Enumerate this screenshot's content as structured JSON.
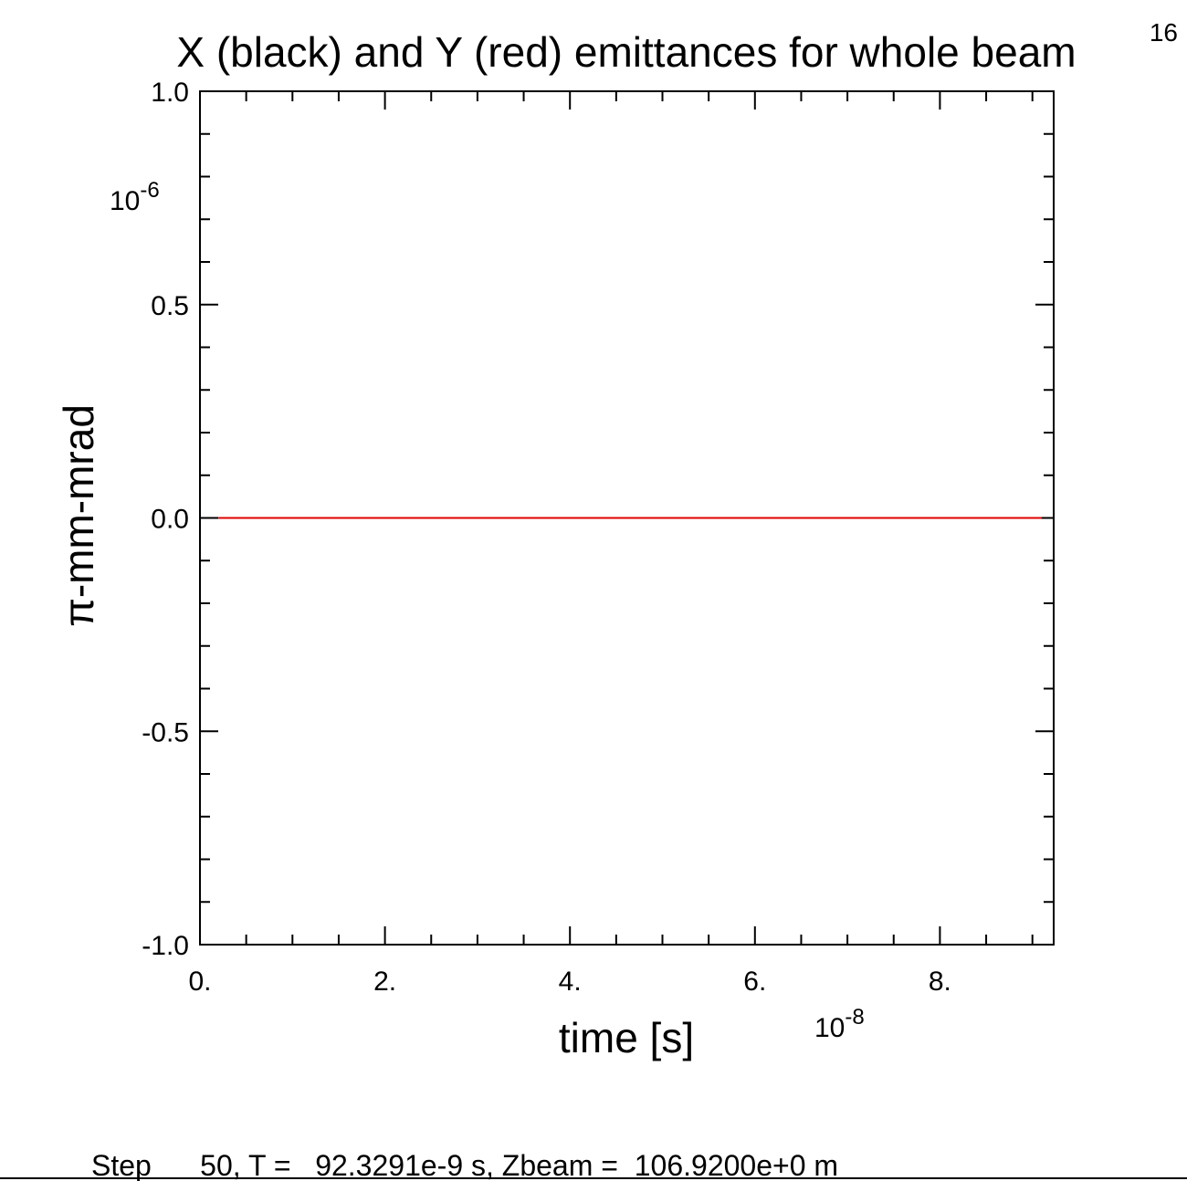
{
  "page_number": "16",
  "status_line": "Step      50, T =   92.3291e-9 s, Zbeam =  106.9200e+0 m",
  "chart_data": {
    "type": "line",
    "title": "X (black) and Y (red) emittances for whole beam",
    "xlabel": "time [s]",
    "ylabel": "π-mm-mrad",
    "x_multiplier": {
      "base": "10",
      "exponent": "-8"
    },
    "y_multiplier": {
      "base": "10",
      "exponent": "-6"
    },
    "xlim": [
      0,
      9.23
    ],
    "ylim": [
      -1.0,
      1.0
    ],
    "x_ticks": [
      {
        "value": 0,
        "label": "0."
      },
      {
        "value": 2,
        "label": "2."
      },
      {
        "value": 4,
        "label": "4."
      },
      {
        "value": 6,
        "label": "6."
      },
      {
        "value": 8,
        "label": "8."
      }
    ],
    "y_ticks": [
      {
        "value": 1.0,
        "label": "1.0"
      },
      {
        "value": 0.5,
        "label": "0.5"
      },
      {
        "value": 0.0,
        "label": "0.0"
      },
      {
        "value": -0.5,
        "label": "-0.5"
      },
      {
        "value": -1.0,
        "label": "-1.0"
      }
    ],
    "series": [
      {
        "name": "X",
        "color": "#000000",
        "x": [
          0.2,
          9.1
        ],
        "y": [
          0.0,
          0.0
        ]
      },
      {
        "name": "Y",
        "color": "#e00000",
        "x": [
          0.2,
          9.1
        ],
        "y": [
          0.0,
          0.0
        ]
      }
    ]
  }
}
